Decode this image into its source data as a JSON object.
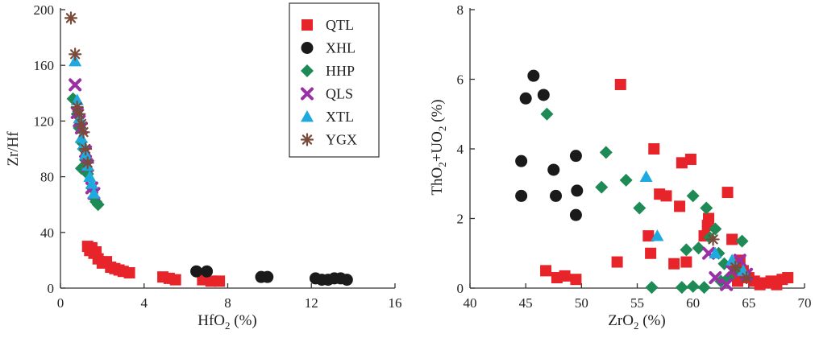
{
  "series_styles": {
    "QTL": {
      "marker": "square",
      "color": "#e8242b"
    },
    "XHL": {
      "marker": "circle",
      "color": "#1a1a1a"
    },
    "HHP": {
      "marker": "diamond",
      "color": "#1e8a55"
    },
    "QLS": {
      "marker": "cross",
      "color": "#9b2fa6"
    },
    "XTL": {
      "marker": "triangle",
      "color": "#1eaadf"
    },
    "YGX": {
      "marker": "asterisk",
      "color": "#7a4a3a"
    }
  },
  "legend": {
    "entries": [
      "QTL",
      "XHL",
      "HHP",
      "QLS",
      "XTL",
      "YGX"
    ]
  },
  "chart_data": [
    {
      "type": "scatter",
      "title": "",
      "xlabel": "HfO2 (%)",
      "ylabel": "Zr/Hf",
      "xlim": [
        0,
        16
      ],
      "ylim": [
        0,
        200
      ],
      "xticks": [
        0,
        4,
        8,
        12,
        16
      ],
      "yticks": [
        0,
        40,
        80,
        120,
        160,
        200
      ],
      "xtick_labels": [
        "0",
        "4",
        "8",
        "12",
        "16"
      ],
      "ytick_labels": [
        "0",
        "40",
        "80",
        "120",
        "160",
        "200"
      ],
      "series": [
        {
          "name": "QTL",
          "points": [
            [
              1.3,
              30
            ],
            [
              1.4,
              27
            ],
            [
              1.5,
              29
            ],
            [
              1.6,
              25
            ],
            [
              1.7,
              26
            ],
            [
              1.8,
              21
            ],
            [
              2.0,
              18
            ],
            [
              2.2,
              19
            ],
            [
              2.4,
              15
            ],
            [
              2.6,
              14
            ],
            [
              2.8,
              13
            ],
            [
              3.0,
              12
            ],
            [
              3.3,
              11
            ],
            [
              4.9,
              8
            ],
            [
              5.2,
              7
            ],
            [
              5.5,
              6
            ],
            [
              6.8,
              6
            ],
            [
              7.2,
              5
            ],
            [
              7.6,
              5
            ]
          ]
        },
        {
          "name": "XHL",
          "points": [
            [
              6.5,
              12
            ],
            [
              7.0,
              12
            ],
            [
              9.6,
              8
            ],
            [
              9.9,
              8
            ],
            [
              12.2,
              7
            ],
            [
              12.5,
              6
            ],
            [
              12.8,
              6
            ],
            [
              13.1,
              7
            ],
            [
              13.4,
              7
            ],
            [
              13.7,
              6
            ]
          ]
        },
        {
          "name": "HHP",
          "points": [
            [
              0.6,
              136
            ],
            [
              0.8,
              125
            ],
            [
              0.9,
              115
            ],
            [
              1.0,
              105
            ],
            [
              1.1,
              100
            ],
            [
              1.2,
              92
            ],
            [
              1.0,
              86
            ],
            [
              1.3,
              82
            ],
            [
              1.5,
              72
            ],
            [
              1.6,
              65
            ],
            [
              1.7,
              62
            ],
            [
              1.8,
              60
            ]
          ]
        },
        {
          "name": "QLS",
          "points": [
            [
              0.7,
              146
            ],
            [
              0.8,
              126
            ],
            [
              0.9,
              120
            ],
            [
              1.0,
              115
            ],
            [
              1.2,
              98
            ],
            [
              1.3,
              88
            ],
            [
              1.5,
              72
            ],
            [
              1.6,
              68
            ]
          ]
        },
        {
          "name": "XTL",
          "points": [
            [
              0.7,
              163
            ],
            [
              0.8,
              135
            ],
            [
              0.9,
              122
            ],
            [
              1.0,
              108
            ],
            [
              1.1,
              103
            ],
            [
              1.2,
              96
            ],
            [
              1.3,
              88
            ],
            [
              1.4,
              80
            ],
            [
              1.5,
              75
            ],
            [
              1.6,
              68
            ]
          ]
        },
        {
          "name": "YGX",
          "points": [
            [
              0.5,
              194
            ],
            [
              0.7,
              168
            ],
            [
              0.8,
              130
            ],
            [
              0.9,
              125
            ],
            [
              1.0,
              118
            ],
            [
              1.1,
              112
            ],
            [
              1.2,
              100
            ],
            [
              1.3,
              90
            ]
          ]
        }
      ]
    },
    {
      "type": "scatter",
      "title": "",
      "xlabel": "ZrO2 (%)",
      "ylabel": "ThO2+UO2 (%)",
      "xlim": [
        40,
        70
      ],
      "ylim": [
        0,
        8
      ],
      "xticks": [
        40,
        45,
        50,
        55,
        60,
        65,
        70
      ],
      "yticks": [
        0,
        2,
        4,
        6,
        8
      ],
      "xtick_labels": [
        "40",
        "45",
        "50",
        "55",
        "60",
        "65",
        "70"
      ],
      "ytick_labels": [
        "0",
        "2",
        "4",
        "6",
        "8"
      ],
      "series": [
        {
          "name": "QTL",
          "points": [
            [
              53.5,
              5.85
            ],
            [
              56.5,
              4.0
            ],
            [
              59.0,
              3.6
            ],
            [
              59.8,
              3.7
            ],
            [
              57.0,
              2.7
            ],
            [
              57.6,
              2.65
            ],
            [
              58.8,
              2.35
            ],
            [
              63.1,
              2.75
            ],
            [
              61.4,
              2.0
            ],
            [
              61.3,
              1.8
            ],
            [
              56.0,
              1.5
            ],
            [
              56.2,
              1.0
            ],
            [
              61.0,
              1.5
            ],
            [
              63.5,
              1.4
            ],
            [
              53.2,
              0.75
            ],
            [
              58.3,
              0.7
            ],
            [
              59.4,
              0.75
            ],
            [
              46.8,
              0.5
            ],
            [
              47.8,
              0.3
            ],
            [
              48.5,
              0.35
            ],
            [
              49.5,
              0.25
            ],
            [
              63.8,
              0.6
            ],
            [
              64.2,
              0.8
            ],
            [
              64.5,
              0.5
            ],
            [
              65.0,
              0.3
            ],
            [
              65.5,
              0.2
            ],
            [
              66.0,
              0.1
            ],
            [
              66.5,
              0.15
            ],
            [
              67.0,
              0.2
            ],
            [
              67.5,
              0.1
            ],
            [
              68.0,
              0.25
            ],
            [
              68.5,
              0.3
            ],
            [
              64.0,
              0.2
            ],
            [
              63.9,
              0.4
            ]
          ]
        },
        {
          "name": "XHL",
          "points": [
            [
              45.7,
              6.1
            ],
            [
              46.6,
              5.55
            ],
            [
              45.0,
              5.45
            ],
            [
              44.6,
              3.65
            ],
            [
              49.5,
              3.8
            ],
            [
              47.5,
              3.4
            ],
            [
              44.6,
              2.65
            ],
            [
              47.7,
              2.65
            ],
            [
              49.6,
              2.8
            ],
            [
              49.5,
              2.1
            ]
          ]
        },
        {
          "name": "HHP",
          "points": [
            [
              46.9,
              5.0
            ],
            [
              52.2,
              3.9
            ],
            [
              54.0,
              3.1
            ],
            [
              51.8,
              2.9
            ],
            [
              55.2,
              2.3
            ],
            [
              60.0,
              2.65
            ],
            [
              61.2,
              2.3
            ],
            [
              62.0,
              1.7
            ],
            [
              61.5,
              1.45
            ],
            [
              64.4,
              1.35
            ],
            [
              60.5,
              1.15
            ],
            [
              59.4,
              1.1
            ],
            [
              62.3,
              1.0
            ],
            [
              62.8,
              0.7
            ],
            [
              64.0,
              0.5
            ],
            [
              63.2,
              0.3
            ],
            [
              62.5,
              0.2
            ],
            [
              56.3,
              0.02
            ],
            [
              59.0,
              0.02
            ],
            [
              60.0,
              0.05
            ],
            [
              61.0,
              0.02
            ]
          ]
        },
        {
          "name": "QLS",
          "points": [
            [
              61.4,
              1.0
            ],
            [
              62.0,
              0.3
            ],
            [
              63.0,
              0.1
            ],
            [
              63.5,
              0.5
            ],
            [
              64.2,
              0.8
            ],
            [
              64.8,
              0.4
            ]
          ]
        },
        {
          "name": "XTL",
          "points": [
            [
              55.8,
              3.2
            ],
            [
              56.8,
              1.5
            ],
            [
              62.0,
              1.0
            ],
            [
              63.5,
              0.8
            ],
            [
              64.5,
              0.5
            ]
          ]
        },
        {
          "name": "YGX",
          "points": [
            [
              61.8,
              1.4
            ],
            [
              63.8,
              0.6
            ],
            [
              64.8,
              0.3
            ]
          ]
        }
      ]
    }
  ]
}
